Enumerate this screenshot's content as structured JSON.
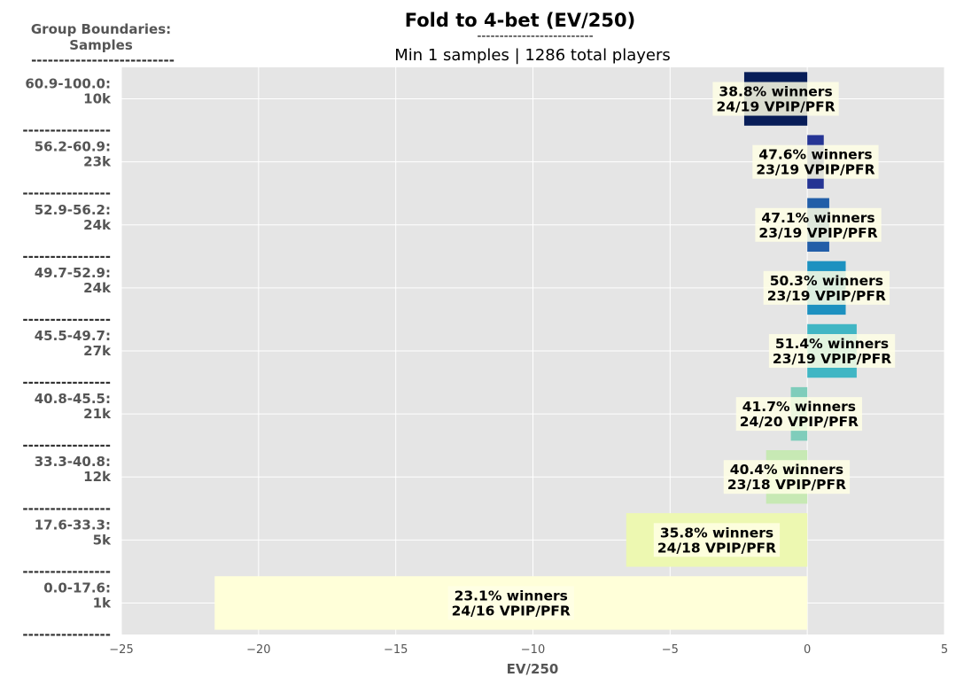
{
  "chart_data": {
    "type": "bar",
    "orientation": "horizontal",
    "title": "Fold to 4-bet (EV/250)",
    "title_underline": "--------------------------",
    "subtitle": "Min 1 samples | 1286 total players",
    "group_header": [
      "Group Boundaries:",
      "Samples"
    ],
    "group_header_underline": "--------------------------",
    "separator": "----------------",
    "xlabel": "EV/250",
    "xlim": [
      -25,
      5
    ],
    "xticks": [
      -25,
      -20,
      -15,
      -10,
      -5,
      0,
      5
    ],
    "xtick_labels": [
      "−25",
      "−20",
      "−15",
      "−10",
      "−5",
      "0",
      "5"
    ],
    "grid": true,
    "categories": [
      {
        "range": "60.9-100.0:",
        "samples": "10k",
        "value": -2.3,
        "label1": "38.8% winners",
        "label2": "24/19 VPIP/PFR",
        "color": "#081d58"
      },
      {
        "range": "56.2-60.9:",
        "samples": "23k",
        "value": 0.6,
        "label1": "47.6% winners",
        "label2": "23/19 VPIP/PFR",
        "color": "#253494"
      },
      {
        "range": "52.9-56.2:",
        "samples": "24k",
        "value": 0.8,
        "label1": "47.1% winners",
        "label2": "23/19 VPIP/PFR",
        "color": "#225ea8"
      },
      {
        "range": "49.7-52.9:",
        "samples": "24k",
        "value": 1.4,
        "label1": "50.3% winners",
        "label2": "23/19 VPIP/PFR",
        "color": "#1d91c0"
      },
      {
        "range": "45.5-49.7:",
        "samples": "27k",
        "value": 1.8,
        "label1": "51.4% winners",
        "label2": "23/19 VPIP/PFR",
        "color": "#41b6c4"
      },
      {
        "range": "40.8-45.5:",
        "samples": "21k",
        "value": -0.6,
        "label1": "41.7% winners",
        "label2": "24/20 VPIP/PFR",
        "color": "#7fcdbb"
      },
      {
        "range": "33.3-40.8:",
        "samples": "12k",
        "value": -1.5,
        "label1": "40.4% winners",
        "label2": "23/18 VPIP/PFR",
        "color": "#c7e9b4"
      },
      {
        "range": "17.6-33.3:",
        "samples": "5k",
        "value": -6.6,
        "label1": "35.8% winners",
        "label2": "24/18 VPIP/PFR",
        "color": "#edf8b1"
      },
      {
        "range": "0.0-17.6:",
        "samples": "1k",
        "value": -21.6,
        "label1": "23.1% winners",
        "label2": "24/16 VPIP/PFR",
        "color": "#ffffd9"
      }
    ]
  }
}
